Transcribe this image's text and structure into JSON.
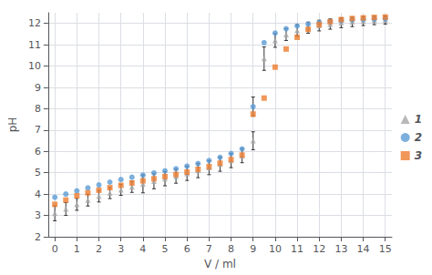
{
  "chart_data": {
    "type": "scatter",
    "xlabel": "V / ml",
    "ylabel": "pH",
    "xlim": [
      -0.3,
      15.3
    ],
    "ylim": [
      2,
      12.5
    ],
    "xticks": [
      0,
      1,
      2,
      3,
      4,
      5,
      6,
      7,
      8,
      9,
      10,
      11,
      12,
      13,
      14,
      15
    ],
    "yticks": [
      2,
      3,
      4,
      5,
      6,
      7,
      8,
      9,
      10,
      11,
      12
    ],
    "grid": true,
    "legend": "right",
    "x": [
      0.0,
      0.5,
      1.0,
      1.5,
      2.0,
      2.5,
      3.0,
      3.5,
      4.0,
      4.5,
      5.0,
      5.5,
      6.0,
      6.5,
      7.0,
      7.5,
      8.0,
      8.5,
      9.0,
      9.5,
      10.0,
      10.5,
      11.0,
      11.5,
      12.0,
      12.5,
      13.0,
      13.5,
      14.0,
      14.5,
      15.0
    ],
    "series": [
      {
        "name": "1",
        "color": "#a8a8a8",
        "marker": "triangle",
        "error_color": "#333333",
        "values": [
          3.1,
          3.3,
          3.52,
          3.72,
          3.9,
          4.05,
          4.2,
          4.34,
          4.48,
          4.6,
          4.72,
          4.84,
          4.97,
          5.1,
          5.24,
          5.4,
          5.57,
          5.8,
          6.5,
          10.35,
          11.2,
          11.48,
          11.67,
          11.8,
          11.9,
          11.97,
          12.03,
          12.07,
          12.11,
          12.14,
          12.16
        ],
        "errors": [
          0.35,
          0.3,
          0.28,
          0.28,
          0.27,
          0.26,
          0.26,
          0.26,
          0.42,
          0.35,
          0.33,
          0.33,
          0.33,
          0.33,
          0.33,
          0.33,
          0.33,
          0.33,
          0.42,
          0.55,
          0.32,
          0.28,
          0.27,
          0.26,
          0.25,
          0.24,
          0.23,
          0.22,
          0.21,
          0.2,
          0.19
        ]
      },
      {
        "name": "2",
        "color": "#5b9bd5",
        "marker": "circle",
        "error_color": "#333333",
        "values": [
          3.85,
          4.0,
          4.15,
          4.29,
          4.43,
          4.56,
          4.68,
          4.79,
          4.89,
          4.99,
          5.09,
          5.19,
          5.31,
          5.43,
          5.57,
          5.72,
          5.9,
          6.12,
          8.1,
          11.1,
          11.55,
          11.75,
          11.88,
          11.97,
          12.04,
          12.09,
          12.13,
          12.16,
          12.18,
          12.2,
          12.22
        ],
        "errors": [
          0.0,
          0.0,
          0.0,
          0.0,
          0.0,
          0.0,
          0.0,
          0.0,
          0.0,
          0.0,
          0.0,
          0.0,
          0.0,
          0.0,
          0.0,
          0.0,
          0.0,
          0.0,
          0.45,
          0.0,
          0.0,
          0.0,
          0.0,
          0.0,
          0.0,
          0.0,
          0.0,
          0.0,
          0.0,
          0.0,
          0.0
        ]
      },
      {
        "name": "3",
        "color": "#ed7d31",
        "marker": "square",
        "values": [
          3.52,
          3.72,
          3.92,
          4.06,
          4.18,
          4.3,
          4.41,
          4.52,
          4.62,
          4.72,
          4.82,
          4.92,
          5.03,
          5.16,
          5.29,
          5.45,
          5.62,
          5.83,
          7.75,
          8.5,
          9.95,
          10.8,
          11.35,
          11.72,
          11.95,
          12.08,
          12.18,
          12.23,
          12.26,
          12.28,
          12.3
        ]
      }
    ]
  }
}
